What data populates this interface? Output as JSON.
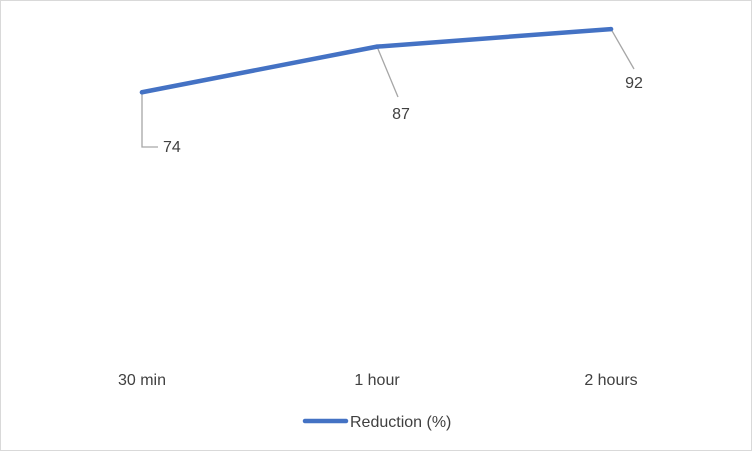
{
  "chart_data": {
    "type": "line",
    "categories": [
      "30 min",
      "1 hour",
      "2 hours"
    ],
    "series": [
      {
        "name": "Reduction (%)",
        "values": [
          74,
          87,
          92
        ],
        "color": "#4472c4"
      }
    ],
    "ylim": [
      0,
      100
    ],
    "grid": false,
    "legend_position": "bottom",
    "data_labels": true,
    "leader_line_color": "#a6a6a6",
    "axis_visible": false
  }
}
